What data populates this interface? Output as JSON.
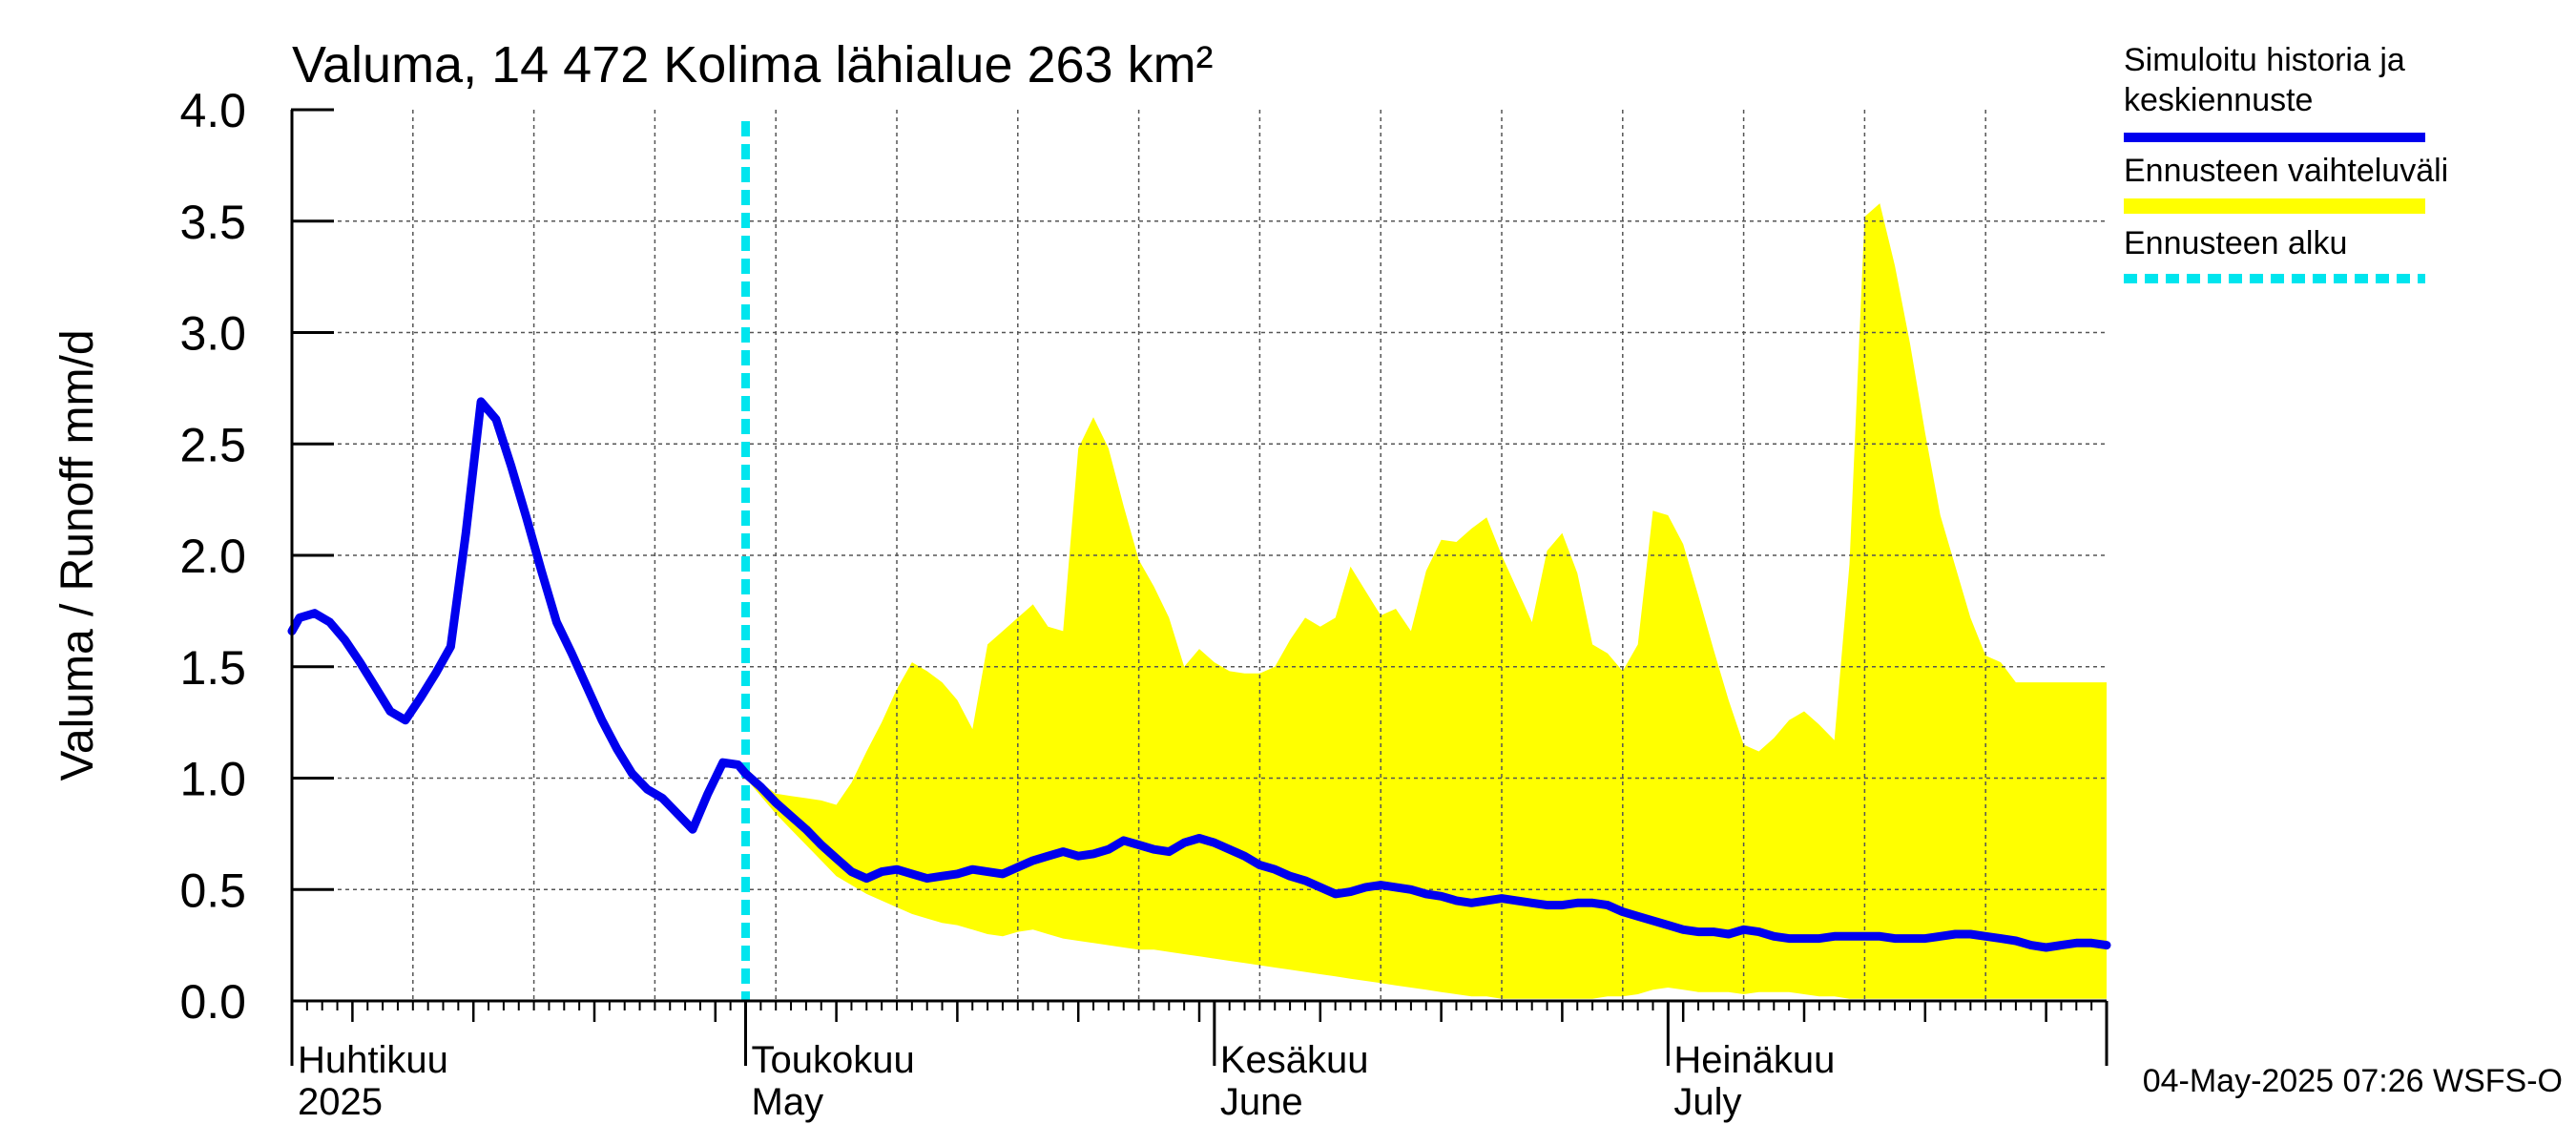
{
  "chart_data": {
    "type": "area",
    "title": "Valuma, 14 472 Kolima lähialue 263 km²",
    "ylabel": "Valuma / Runoff    mm/d",
    "ylim": [
      0,
      4
    ],
    "yticks": [
      "0.0",
      "0.5",
      "1.0",
      "1.5",
      "2.0",
      "2.5",
      "3.0",
      "3.5",
      "4.0"
    ],
    "x_unit": "days since 1 April 2025",
    "xlim": [
      0,
      120
    ],
    "month_labels": [
      {
        "day": 0,
        "fi": "Huhtikuu",
        "en": "2025"
      },
      {
        "day": 30,
        "fi": "Toukokuu",
        "en": "May"
      },
      {
        "day": 61,
        "fi": "Kesäkuu",
        "en": "June"
      },
      {
        "day": 91,
        "fi": "Heinäkuu",
        "en": "July"
      }
    ],
    "forecast_start_day": 30,
    "series": [
      {
        "name": "Simuloitu historia ja keskiennuste",
        "color": "#0000ee",
        "points": [
          [
            0,
            1.66
          ],
          [
            0.5,
            1.72
          ],
          [
            1.5,
            1.74
          ],
          [
            2.5,
            1.7
          ],
          [
            3.5,
            1.62
          ],
          [
            4.5,
            1.52
          ],
          [
            5.5,
            1.41
          ],
          [
            6.5,
            1.3
          ],
          [
            7.5,
            1.26
          ],
          [
            8.5,
            1.36
          ],
          [
            9.5,
            1.47
          ],
          [
            10.5,
            1.59
          ],
          [
            11.5,
            2.1
          ],
          [
            12.5,
            2.69
          ],
          [
            13.5,
            2.61
          ],
          [
            14.5,
            2.4
          ],
          [
            15.5,
            2.17
          ],
          [
            16.5,
            1.93
          ],
          [
            17.5,
            1.7
          ],
          [
            18.5,
            1.56
          ],
          [
            19.5,
            1.41
          ],
          [
            20.5,
            1.26
          ],
          [
            21.5,
            1.13
          ],
          [
            22.5,
            1.02
          ],
          [
            23.5,
            0.95
          ],
          [
            24.5,
            0.91
          ],
          [
            25.5,
            0.84
          ],
          [
            26.5,
            0.77
          ],
          [
            27.5,
            0.93
          ],
          [
            28.5,
            1.07
          ],
          [
            29.5,
            1.06
          ],
          [
            30,
            1.02
          ],
          [
            31,
            0.96
          ],
          [
            32,
            0.89
          ],
          [
            33,
            0.83
          ],
          [
            34,
            0.77
          ],
          [
            35,
            0.7
          ],
          [
            36,
            0.64
          ],
          [
            37,
            0.58
          ],
          [
            38,
            0.55
          ],
          [
            39,
            0.58
          ],
          [
            40,
            0.59
          ],
          [
            41,
            0.57
          ],
          [
            42,
            0.55
          ],
          [
            43,
            0.56
          ],
          [
            44,
            0.57
          ],
          [
            45,
            0.59
          ],
          [
            46,
            0.58
          ],
          [
            47,
            0.57
          ],
          [
            48,
            0.6
          ],
          [
            49,
            0.63
          ],
          [
            50,
            0.65
          ],
          [
            51,
            0.67
          ],
          [
            52,
            0.65
          ],
          [
            53,
            0.66
          ],
          [
            54,
            0.68
          ],
          [
            55,
            0.72
          ],
          [
            56,
            0.7
          ],
          [
            57,
            0.68
          ],
          [
            58,
            0.67
          ],
          [
            59,
            0.71
          ],
          [
            60,
            0.73
          ],
          [
            61,
            0.71
          ],
          [
            62,
            0.68
          ],
          [
            63,
            0.65
          ],
          [
            64,
            0.61
          ],
          [
            65,
            0.59
          ],
          [
            66,
            0.56
          ],
          [
            67,
            0.54
          ],
          [
            68,
            0.51
          ],
          [
            69,
            0.48
          ],
          [
            70,
            0.49
          ],
          [
            71,
            0.51
          ],
          [
            72,
            0.52
          ],
          [
            73,
            0.51
          ],
          [
            74,
            0.5
          ],
          [
            75,
            0.48
          ],
          [
            76,
            0.47
          ],
          [
            77,
            0.45
          ],
          [
            78,
            0.44
          ],
          [
            79,
            0.45
          ],
          [
            80,
            0.46
          ],
          [
            81,
            0.45
          ],
          [
            82,
            0.44
          ],
          [
            83,
            0.43
          ],
          [
            84,
            0.43
          ],
          [
            85,
            0.44
          ],
          [
            86,
            0.44
          ],
          [
            87,
            0.43
          ],
          [
            88,
            0.4
          ],
          [
            89,
            0.38
          ],
          [
            90,
            0.36
          ],
          [
            91,
            0.34
          ],
          [
            92,
            0.32
          ],
          [
            93,
            0.31
          ],
          [
            94,
            0.31
          ],
          [
            95,
            0.3
          ],
          [
            96,
            0.32
          ],
          [
            97,
            0.31
          ],
          [
            98,
            0.29
          ],
          [
            99,
            0.28
          ],
          [
            100,
            0.28
          ],
          [
            101,
            0.28
          ],
          [
            102,
            0.29
          ],
          [
            103,
            0.29
          ],
          [
            104,
            0.29
          ],
          [
            105,
            0.29
          ],
          [
            106,
            0.28
          ],
          [
            107,
            0.28
          ],
          [
            108,
            0.28
          ],
          [
            109,
            0.29
          ],
          [
            110,
            0.3
          ],
          [
            111,
            0.3
          ],
          [
            112,
            0.29
          ],
          [
            113,
            0.28
          ],
          [
            114,
            0.27
          ],
          [
            115,
            0.25
          ],
          [
            116,
            0.24
          ],
          [
            117,
            0.25
          ],
          [
            118,
            0.26
          ],
          [
            119,
            0.26
          ],
          [
            120,
            0.25
          ]
        ]
      },
      {
        "name": "Ennusteen vaihteluväli",
        "color": "#ffff00",
        "upper": [
          [
            30,
            1.05
          ],
          [
            31,
            0.98
          ],
          [
            32,
            0.93
          ],
          [
            33,
            0.92
          ],
          [
            34,
            0.91
          ],
          [
            35,
            0.9
          ],
          [
            36,
            0.88
          ],
          [
            37,
            0.98
          ],
          [
            38,
            1.12
          ],
          [
            39,
            1.25
          ],
          [
            40,
            1.4
          ],
          [
            41,
            1.52
          ],
          [
            42,
            1.48
          ],
          [
            43,
            1.43
          ],
          [
            44,
            1.35
          ],
          [
            45,
            1.22
          ],
          [
            46,
            1.6
          ],
          [
            47,
            1.66
          ],
          [
            48,
            1.72
          ],
          [
            49,
            1.78
          ],
          [
            50,
            1.68
          ],
          [
            51,
            1.66
          ],
          [
            52,
            2.48
          ],
          [
            53,
            2.62
          ],
          [
            54,
            2.48
          ],
          [
            55,
            2.22
          ],
          [
            56,
            1.98
          ],
          [
            57,
            1.86
          ],
          [
            58,
            1.72
          ],
          [
            59,
            1.5
          ],
          [
            60,
            1.58
          ],
          [
            61,
            1.52
          ],
          [
            62,
            1.48
          ],
          [
            63,
            1.47
          ],
          [
            64,
            1.47
          ],
          [
            65,
            1.5
          ],
          [
            66,
            1.62
          ],
          [
            67,
            1.72
          ],
          [
            68,
            1.68
          ],
          [
            69,
            1.72
          ],
          [
            70,
            1.95
          ],
          [
            71,
            1.84
          ],
          [
            72,
            1.73
          ],
          [
            73,
            1.76
          ],
          [
            74,
            1.66
          ],
          [
            75,
            1.93
          ],
          [
            76,
            2.07
          ],
          [
            77,
            2.06
          ],
          [
            78,
            2.12
          ],
          [
            79,
            2.17
          ],
          [
            80,
            2.0
          ],
          [
            81,
            1.85
          ],
          [
            82,
            1.7
          ],
          [
            83,
            2.02
          ],
          [
            84,
            2.1
          ],
          [
            85,
            1.92
          ],
          [
            86,
            1.6
          ],
          [
            87,
            1.56
          ],
          [
            88,
            1.48
          ],
          [
            89,
            1.6
          ],
          [
            90,
            2.2
          ],
          [
            91,
            2.18
          ],
          [
            92,
            2.05
          ],
          [
            93,
            1.82
          ],
          [
            94,
            1.58
          ],
          [
            95,
            1.35
          ],
          [
            96,
            1.15
          ],
          [
            97,
            1.12
          ],
          [
            98,
            1.18
          ],
          [
            99,
            1.26
          ],
          [
            100,
            1.3
          ],
          [
            101,
            1.24
          ],
          [
            102,
            1.17
          ],
          [
            103,
            1.96
          ],
          [
            104,
            3.52
          ],
          [
            105,
            3.58
          ],
          [
            106,
            3.3
          ],
          [
            107,
            2.95
          ],
          [
            108,
            2.55
          ],
          [
            109,
            2.18
          ],
          [
            110,
            1.95
          ],
          [
            111,
            1.72
          ],
          [
            112,
            1.55
          ],
          [
            113,
            1.52
          ],
          [
            114,
            1.43
          ],
          [
            120,
            1.43
          ]
        ],
        "lower": [
          [
            30,
            1.0
          ],
          [
            31,
            0.92
          ],
          [
            32,
            0.84
          ],
          [
            33,
            0.77
          ],
          [
            34,
            0.7
          ],
          [
            35,
            0.63
          ],
          [
            36,
            0.56
          ],
          [
            37,
            0.52
          ],
          [
            38,
            0.48
          ],
          [
            39,
            0.45
          ],
          [
            40,
            0.42
          ],
          [
            41,
            0.39
          ],
          [
            42,
            0.37
          ],
          [
            43,
            0.35
          ],
          [
            44,
            0.34
          ],
          [
            45,
            0.32
          ],
          [
            46,
            0.3
          ],
          [
            47,
            0.29
          ],
          [
            48,
            0.31
          ],
          [
            49,
            0.32
          ],
          [
            50,
            0.3
          ],
          [
            51,
            0.28
          ],
          [
            52,
            0.27
          ],
          [
            53,
            0.26
          ],
          [
            54,
            0.25
          ],
          [
            55,
            0.24
          ],
          [
            56,
            0.23
          ],
          [
            57,
            0.23
          ],
          [
            58,
            0.22
          ],
          [
            59,
            0.21
          ],
          [
            60,
            0.2
          ],
          [
            61,
            0.19
          ],
          [
            62,
            0.18
          ],
          [
            63,
            0.17
          ],
          [
            64,
            0.16
          ],
          [
            65,
            0.15
          ],
          [
            66,
            0.14
          ],
          [
            67,
            0.13
          ],
          [
            68,
            0.12
          ],
          [
            69,
            0.11
          ],
          [
            70,
            0.1
          ],
          [
            71,
            0.09
          ],
          [
            72,
            0.08
          ],
          [
            73,
            0.07
          ],
          [
            74,
            0.06
          ],
          [
            75,
            0.05
          ],
          [
            76,
            0.04
          ],
          [
            77,
            0.03
          ],
          [
            78,
            0.02
          ],
          [
            79,
            0.02
          ],
          [
            80,
            0.01
          ],
          [
            81,
            0.01
          ],
          [
            82,
            0.01
          ],
          [
            83,
            0.01
          ],
          [
            84,
            0.01
          ],
          [
            85,
            0.01
          ],
          [
            86,
            0.01
          ],
          [
            87,
            0.02
          ],
          [
            88,
            0.02
          ],
          [
            89,
            0.03
          ],
          [
            90,
            0.05
          ],
          [
            91,
            0.06
          ],
          [
            92,
            0.05
          ],
          [
            93,
            0.04
          ],
          [
            94,
            0.04
          ],
          [
            95,
            0.04
          ],
          [
            96,
            0.03
          ],
          [
            97,
            0.04
          ],
          [
            98,
            0.04
          ],
          [
            99,
            0.04
          ],
          [
            100,
            0.03
          ],
          [
            101,
            0.02
          ],
          [
            102,
            0.02
          ],
          [
            103,
            0.01
          ],
          [
            104,
            0.01
          ],
          [
            105,
            0.01
          ],
          [
            106,
            0.01
          ],
          [
            107,
            0.01
          ],
          [
            108,
            0.01
          ],
          [
            109,
            0.01
          ],
          [
            110,
            0.01
          ],
          [
            111,
            0.01
          ],
          [
            112,
            0.01
          ],
          [
            113,
            0.01
          ],
          [
            114,
            0.01
          ],
          [
            120,
            0.01
          ]
        ]
      }
    ],
    "legend": [
      {
        "text": "Simuloitu historia ja keskiennuste",
        "lines": [
          "Simuloitu historia ja",
          "keskiennuste"
        ],
        "color": "#0000ee",
        "style": "solid"
      },
      {
        "text": "Ennusteen vaihteluväli",
        "lines": [
          "Ennusteen vaihteluväli"
        ],
        "color": "#ffff00",
        "style": "solid"
      },
      {
        "text": "Ennusteen alku",
        "lines": [
          "Ennusteen alku"
        ],
        "color": "#00e5ee",
        "style": "dashed"
      }
    ],
    "footer": "04-May-2025 07:26 WSFS-O"
  }
}
